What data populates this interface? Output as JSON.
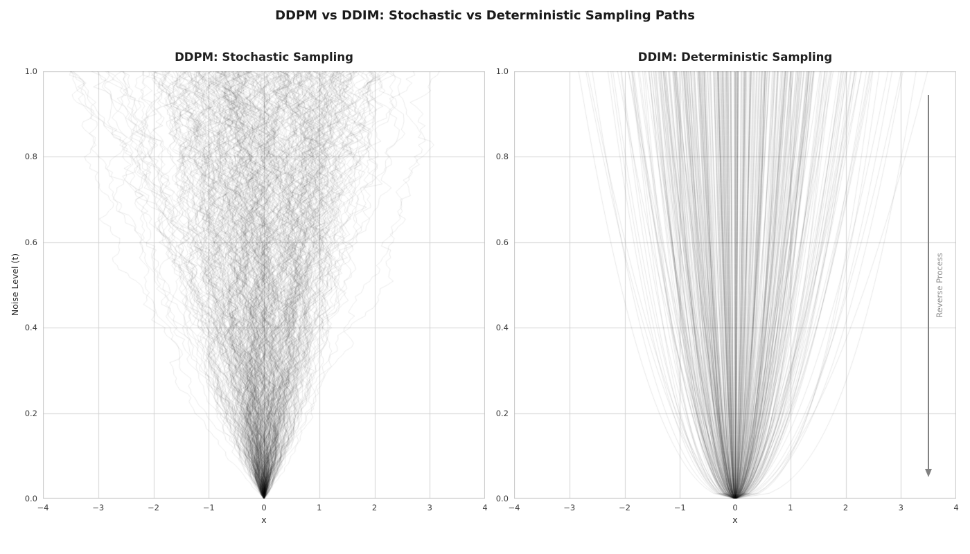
{
  "figure": {
    "suptitle": "DDPM vs DDIM: Stochastic vs Deterministic Sampling Paths",
    "background": "#ffffff",
    "grid_color": "#d2d2d2",
    "spine_color": "#c4c4c4",
    "path_color": "#000000",
    "title_color": "#1f1f1f",
    "tick_color": "#3a3a3a"
  },
  "chart_data": [
    {
      "type": "line",
      "id": "ddpm",
      "title": "DDPM: Stochastic Sampling",
      "xlabel": "x",
      "ylabel": "Noise Level (t)",
      "xlim": [
        -4,
        4
      ],
      "ylim": [
        0,
        1
      ],
      "xticks": [
        -4,
        -3,
        -2,
        -1,
        0,
        1,
        2,
        3,
        4
      ],
      "xtick_labels": [
        "−4",
        "−3",
        "−2",
        "−1",
        "0",
        "1",
        "2",
        "3",
        "4"
      ],
      "yticks": [
        0.0,
        0.2,
        0.4,
        0.6,
        0.8,
        1.0
      ],
      "ytick_labels": [
        "0.0",
        "0.2",
        "0.4",
        "0.6",
        "0.8",
        "1.0"
      ],
      "grid": true,
      "legend": false,
      "model": {
        "kind": "stochastic-reverse-diffusion",
        "description": "Random-walk reverse diffusion trajectories from noise (t=1) converging to x=0 at t=0",
        "n_paths": 320,
        "n_steps": 110,
        "start_std": 1.15,
        "start_clip": 3.5,
        "noise_scale": 0.9,
        "seed": 7,
        "line_alpha": 0.1,
        "line_width": 0.9,
        "converges_to": [
          0,
          0
        ]
      }
    },
    {
      "type": "line",
      "id": "ddim",
      "title": "DDIM: Deterministic Sampling",
      "xlabel": "x",
      "ylabel": "",
      "xlim": [
        -4,
        4
      ],
      "ylim": [
        0,
        1
      ],
      "xticks": [
        -4,
        -3,
        -2,
        -1,
        0,
        1,
        2,
        3,
        4
      ],
      "xtick_labels": [
        "−4",
        "−3",
        "−2",
        "−1",
        "0",
        "1",
        "2",
        "3",
        "4"
      ],
      "yticks": [
        0.0,
        0.2,
        0.4,
        0.6,
        0.8,
        1.0
      ],
      "ytick_labels": [
        "0.0",
        "0.2",
        "0.4",
        "0.6",
        "0.8",
        "1.0"
      ],
      "grid": true,
      "legend": false,
      "model": {
        "kind": "deterministic-power-curves",
        "description": "Smooth ODE trajectories x(t) = x1 * t^p converging to x=0 at t=0",
        "n_paths": 340,
        "n_points": 80,
        "start_std": 1.25,
        "exponent_mean": 0.55,
        "exponent_std": 0.09,
        "exponent_clip": [
          0.38,
          0.85
        ],
        "seed": 42,
        "line_alpha": 0.1,
        "line_width": 1.0,
        "converges_to": [
          0,
          0
        ]
      },
      "annotation": {
        "text": "Reverse Process",
        "x": 3.5,
        "y_from": 0.945,
        "y_to": 0.05,
        "color": "#818181"
      }
    }
  ]
}
